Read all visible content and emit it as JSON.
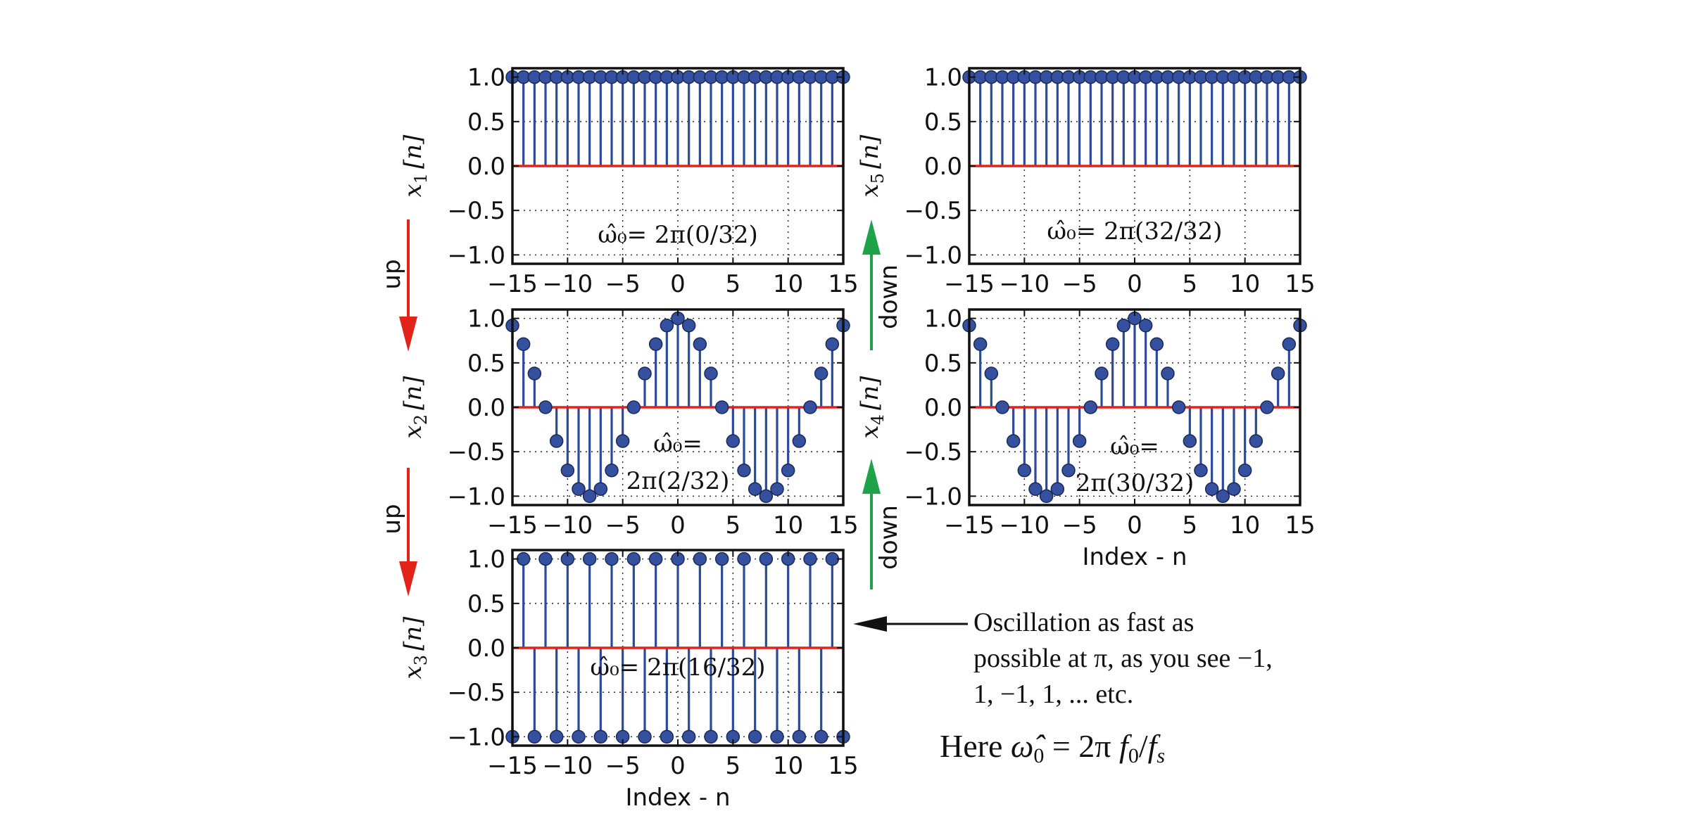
{
  "colors": {
    "stem": "#2c4a9a",
    "marker_fill": "#34509f",
    "baseline": "#e2231a",
    "up_arrow": "#e2231a",
    "down_arrow": "#1fa34a",
    "note_arrow": "#111111"
  },
  "chart_data": [
    {
      "type": "stem",
      "id": "x1",
      "ylabel": "x",
      "ylabel_sub": "1",
      "annotation": {
        "lines": [
          "ω̂₀= 2π(0/32)"
        ]
      },
      "k": 0,
      "N": 32,
      "x": [
        -15,
        -14,
        -13,
        -12,
        -11,
        -10,
        -9,
        -8,
        -7,
        -6,
        -5,
        -4,
        -3,
        -2,
        -1,
        0,
        1,
        2,
        3,
        4,
        5,
        6,
        7,
        8,
        9,
        10,
        11,
        12,
        13,
        14,
        15
      ],
      "values": [
        1,
        1,
        1,
        1,
        1,
        1,
        1,
        1,
        1,
        1,
        1,
        1,
        1,
        1,
        1,
        1,
        1,
        1,
        1,
        1,
        1,
        1,
        1,
        1,
        1,
        1,
        1,
        1,
        1,
        1,
        1
      ],
      "xlim": [
        -15,
        15
      ],
      "ylim": [
        -1.1,
        1.1
      ],
      "xticks": [
        "−15",
        "−10",
        "−5",
        "0",
        "5",
        "10",
        "15"
      ],
      "yticks": [
        "1.0",
        "0.5",
        "0.0",
        "−0.5",
        "−1.0"
      ],
      "grid": true,
      "xlabel": ""
    },
    {
      "type": "stem",
      "id": "x2",
      "ylabel": "x",
      "ylabel_sub": "2",
      "annotation": {
        "lines": [
          "ω̂₀=",
          "2π(2/32)"
        ]
      },
      "k": 2,
      "N": 32,
      "x": [
        -15,
        -14,
        -13,
        -12,
        -11,
        -10,
        -9,
        -8,
        -7,
        -6,
        -5,
        -4,
        -3,
        -2,
        -1,
        0,
        1,
        2,
        3,
        4,
        5,
        6,
        7,
        8,
        9,
        10,
        11,
        12,
        13,
        14,
        15
      ],
      "values": [
        0.92,
        0.71,
        0.38,
        0,
        -0.38,
        -0.71,
        -0.92,
        -1,
        -0.92,
        -0.71,
        -0.38,
        0,
        0.38,
        0.71,
        0.92,
        1,
        0.92,
        0.71,
        0.38,
        0,
        -0.38,
        -0.71,
        -0.92,
        -1,
        -0.92,
        -0.71,
        -0.38,
        0,
        0.38,
        0.71,
        0.92
      ],
      "xlim": [
        -15,
        15
      ],
      "ylim": [
        -1.1,
        1.1
      ],
      "xticks": [
        "−15",
        "−10",
        "−5",
        "0",
        "5",
        "10",
        "15"
      ],
      "yticks": [
        "1.0",
        "0.5",
        "0.0",
        "−0.5",
        "−1.0"
      ],
      "grid": true,
      "xlabel": ""
    },
    {
      "type": "stem",
      "id": "x3",
      "ylabel": "x",
      "ylabel_sub": "3",
      "annotation": {
        "lines": [
          "ω̂₀= 2π(16/32)"
        ]
      },
      "k": 16,
      "N": 32,
      "x": [
        -15,
        -14,
        -13,
        -12,
        -11,
        -10,
        -9,
        -8,
        -7,
        -6,
        -5,
        -4,
        -3,
        -2,
        -1,
        0,
        1,
        2,
        3,
        4,
        5,
        6,
        7,
        8,
        9,
        10,
        11,
        12,
        13,
        14,
        15
      ],
      "values": [
        -1,
        1,
        -1,
        1,
        -1,
        1,
        -1,
        1,
        -1,
        1,
        -1,
        1,
        -1,
        1,
        -1,
        1,
        -1,
        1,
        -1,
        1,
        -1,
        1,
        -1,
        1,
        -1,
        1,
        -1,
        1,
        -1,
        1,
        -1
      ],
      "xlim": [
        -15,
        15
      ],
      "ylim": [
        -1.1,
        1.1
      ],
      "xticks": [
        "−15",
        "−10",
        "−5",
        "0",
        "5",
        "10",
        "15"
      ],
      "yticks": [
        "1.0",
        "0.5",
        "0.0",
        "−0.5",
        "−1.0"
      ],
      "grid": true,
      "xlabel": "Index - n"
    },
    {
      "type": "stem",
      "id": "x5",
      "ylabel": "x",
      "ylabel_sub": "5",
      "annotation": {
        "lines": [
          "ω̂₀= 2π(32/32)"
        ]
      },
      "k": 32,
      "N": 32,
      "x": [
        -15,
        -14,
        -13,
        -12,
        -11,
        -10,
        -9,
        -8,
        -7,
        -6,
        -5,
        -4,
        -3,
        -2,
        -1,
        0,
        1,
        2,
        3,
        4,
        5,
        6,
        7,
        8,
        9,
        10,
        11,
        12,
        13,
        14,
        15
      ],
      "values": [
        1,
        1,
        1,
        1,
        1,
        1,
        1,
        1,
        1,
        1,
        1,
        1,
        1,
        1,
        1,
        1,
        1,
        1,
        1,
        1,
        1,
        1,
        1,
        1,
        1,
        1,
        1,
        1,
        1,
        1,
        1
      ],
      "xlim": [
        -15,
        15
      ],
      "ylim": [
        -1.1,
        1.1
      ],
      "xticks": [
        "−15",
        "−10",
        "−5",
        "0",
        "5",
        "10",
        "15"
      ],
      "yticks": [
        "1.0",
        "0.5",
        "0.0",
        "−0.5",
        "−1.0"
      ],
      "grid": true,
      "xlabel": ""
    },
    {
      "type": "stem",
      "id": "x4",
      "ylabel": "x",
      "ylabel_sub": "4",
      "annotation": {
        "lines": [
          "ω̂₀=",
          "2π(30/32)"
        ]
      },
      "k": 30,
      "N": 32,
      "x": [
        -15,
        -14,
        -13,
        -12,
        -11,
        -10,
        -9,
        -8,
        -7,
        -6,
        -5,
        -4,
        -3,
        -2,
        -1,
        0,
        1,
        2,
        3,
        4,
        5,
        6,
        7,
        8,
        9,
        10,
        11,
        12,
        13,
        14,
        15
      ],
      "values": [
        0.92,
        0.71,
        0.38,
        0,
        -0.38,
        -0.71,
        -0.92,
        -1,
        -0.92,
        -0.71,
        -0.38,
        0,
        0.38,
        0.71,
        0.92,
        1,
        0.92,
        0.71,
        0.38,
        0,
        -0.38,
        -0.71,
        -0.92,
        -1,
        -0.92,
        -0.71,
        -0.38,
        0,
        0.38,
        0.71,
        0.92
      ],
      "xlim": [
        -15,
        15
      ],
      "ylim": [
        -1.1,
        1.1
      ],
      "xticks": [
        "−15",
        "−10",
        "−5",
        "0",
        "5",
        "10",
        "15"
      ],
      "yticks": [
        "1.0",
        "0.5",
        "0.0",
        "−0.5",
        "−1.0"
      ],
      "grid": true,
      "xlabel": "Index - n"
    }
  ],
  "ylabel_arg": "[n]",
  "arrows": {
    "up_label": "up",
    "down_label": "down"
  },
  "note": {
    "lines": [
      "Oscillation as fast as",
      "possible at π, as you see −1,",
      "1, −1, 1, ... etc."
    ]
  },
  "formula": {
    "prefix": "Here ",
    "omega": "ω̂",
    "omega_sub": "0",
    "equals": " = 2π ",
    "f": "f",
    "f_sub": "0",
    "slash": "/",
    "fs": "f",
    "fs_sub": "s"
  }
}
